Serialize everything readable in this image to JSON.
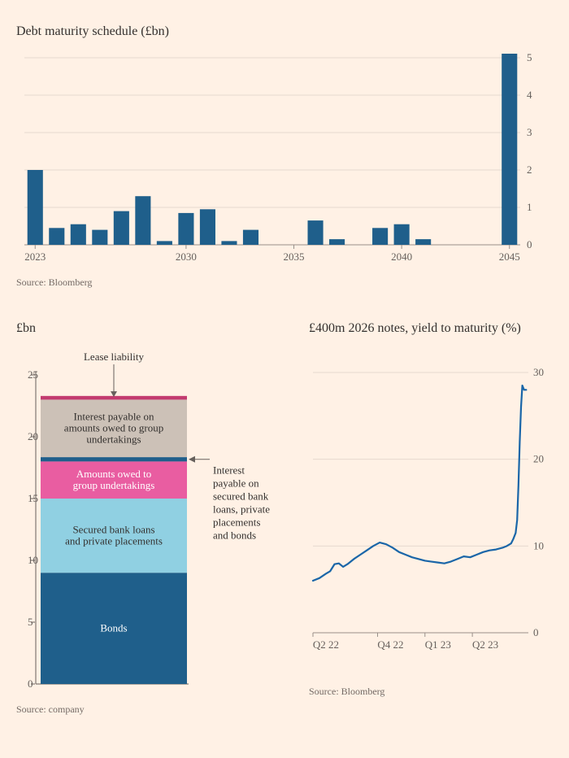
{
  "top": {
    "title": "Debt maturity schedule (£bn)",
    "source": "Source: Bloomberg",
    "type": "bar",
    "years": [
      2023,
      2024,
      2025,
      2026,
      2027,
      2028,
      2029,
      2030,
      2031,
      2032,
      2033,
      2034,
      2035,
      2036,
      2037,
      2038,
      2039,
      2040,
      2041,
      2042,
      2043,
      2044,
      2045
    ],
    "values": [
      2.0,
      0.45,
      0.55,
      0.4,
      0.9,
      1.3,
      0.1,
      0.85,
      0.95,
      0.1,
      0.4,
      0,
      0,
      0.65,
      0.15,
      0,
      0.45,
      0.55,
      0.15,
      0,
      0,
      0,
      5.15
    ],
    "xticks": [
      2023,
      2030,
      2035,
      2040,
      2045
    ],
    "ylim": [
      0,
      5
    ],
    "ytick_step": 1,
    "bar_color": "#1f5f8b",
    "grid_color": "#e6d9ce",
    "axis_color": "#999089",
    "background": "#fff1e5"
  },
  "bl": {
    "title": "£bn",
    "source": "Source: company",
    "type": "stacked-bar",
    "ylim": [
      0,
      25
    ],
    "ytick_step": 5,
    "segments": [
      {
        "name": "Bonds",
        "from": 0,
        "to": 9.0,
        "color": "#1f5f8b",
        "text": "#ffffff"
      },
      {
        "name": "Secured bank loans\nand private placements",
        "from": 9.0,
        "to": 15.0,
        "color": "#90d0e2",
        "text": "#33302e"
      },
      {
        "name": "Amounts owed to\ngroup undertakings",
        "from": 15.0,
        "to": 18.0,
        "color": "#e95da1",
        "text": "#ffffff"
      },
      {
        "name": "Interest payable on secured bank loans, private placements and bonds",
        "from": 18.0,
        "to": 18.35,
        "color": "#1f5f8b",
        "text": "#33302e",
        "external": true
      },
      {
        "name": "Interest payable on\namounts owed to group\nundertakings",
        "from": 18.35,
        "to": 23.0,
        "color": "#ccc1b7",
        "text": "#33302e"
      },
      {
        "name": "Lease liability",
        "from": 23.0,
        "to": 23.3,
        "color": "#c33b6f",
        "text": "#33302e",
        "external": true
      }
    ],
    "grid_color": "#e6d9ce",
    "axis_color": "#66605c"
  },
  "br": {
    "title": "£400m 2026 notes, yield to maturity (%)",
    "source": "Source: Bloomberg",
    "type": "line",
    "ylim": [
      0,
      30
    ],
    "ytick_step": 10,
    "xticks": [
      "Q2 22",
      "Q4 22",
      "Q1 23",
      "Q2 23"
    ],
    "line_color": "#1a66a8",
    "grid_color": "#e6d9ce",
    "axis_color": "#999089",
    "points": [
      [
        0.0,
        6.0
      ],
      [
        0.03,
        6.3
      ],
      [
        0.06,
        6.8
      ],
      [
        0.08,
        7.1
      ],
      [
        0.1,
        7.9
      ],
      [
        0.12,
        8.0
      ],
      [
        0.14,
        7.6
      ],
      [
        0.16,
        7.9
      ],
      [
        0.19,
        8.5
      ],
      [
        0.22,
        9.0
      ],
      [
        0.25,
        9.5
      ],
      [
        0.28,
        10.0
      ],
      [
        0.31,
        10.4
      ],
      [
        0.34,
        10.2
      ],
      [
        0.37,
        9.8
      ],
      [
        0.4,
        9.3
      ],
      [
        0.43,
        9.0
      ],
      [
        0.46,
        8.7
      ],
      [
        0.49,
        8.5
      ],
      [
        0.52,
        8.3
      ],
      [
        0.55,
        8.2
      ],
      [
        0.58,
        8.1
      ],
      [
        0.61,
        8.0
      ],
      [
        0.64,
        8.2
      ],
      [
        0.67,
        8.5
      ],
      [
        0.7,
        8.8
      ],
      [
        0.73,
        8.7
      ],
      [
        0.76,
        9.0
      ],
      [
        0.79,
        9.3
      ],
      [
        0.82,
        9.5
      ],
      [
        0.85,
        9.6
      ],
      [
        0.88,
        9.8
      ],
      [
        0.9,
        10.0
      ],
      [
        0.92,
        10.3
      ],
      [
        0.93,
        10.8
      ],
      [
        0.941,
        11.5
      ],
      [
        0.948,
        13.0
      ],
      [
        0.954,
        17.0
      ],
      [
        0.96,
        22.0
      ],
      [
        0.966,
        26.0
      ],
      [
        0.972,
        28.5
      ],
      [
        0.98,
        28.0
      ],
      [
        0.99,
        28.0
      ]
    ]
  }
}
